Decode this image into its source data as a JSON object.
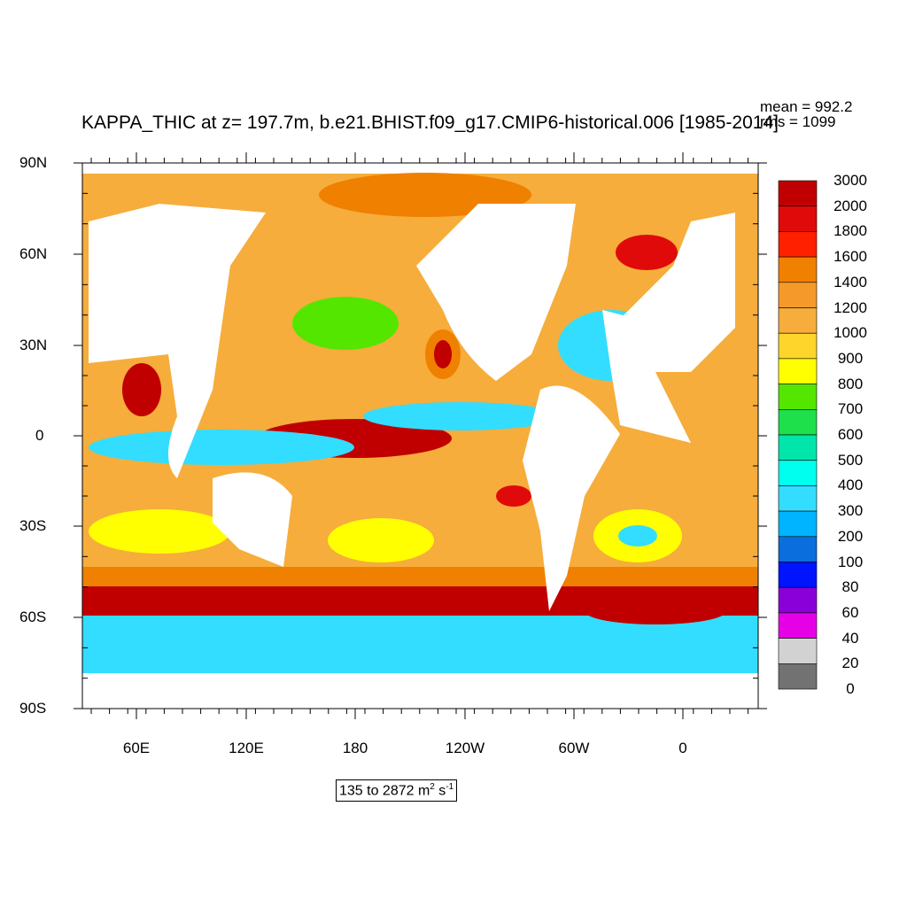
{
  "title": "KAPPA_THIC at z= 197.7m, b.e21.BHIST.f09_g17.CMIP6-historical.006 [1985-2014]",
  "stats": {
    "mean": "mean = 992.2",
    "rms": "rms = 1099"
  },
  "lat_labels": [
    "90N",
    "60N",
    "30N",
    "0",
    "30S",
    "60S",
    "90S"
  ],
  "lon_labels": [
    "60E",
    "120E",
    "180",
    "120W",
    "60W",
    "0"
  ],
  "colorbar": {
    "labels": [
      "3000",
      "2000",
      "1800",
      "1600",
      "1400",
      "1200",
      "1000",
      "900",
      "800",
      "700",
      "600",
      "500",
      "400",
      "300",
      "200",
      "100",
      "80",
      "60",
      "40",
      "20",
      "0"
    ],
    "colors": [
      "#c00000",
      "#e00a0a",
      "#ff2000",
      "#f08000",
      "#f59a2a",
      "#f6ad3c",
      "#fdd52b",
      "#ffff00",
      "#55e600",
      "#1de04a",
      "#00e6aa",
      "#00ffee",
      "#33ddff",
      "#00b4ff",
      "#0a6edc",
      "#0014ff",
      "#8a00d8",
      "#e600e6",
      "#d2d2d2",
      "#727272"
    ]
  },
  "range": {
    "prefix": "135 to 2872 m",
    "exp1": "2",
    "mid": " s",
    "exp2": "-1"
  }
}
